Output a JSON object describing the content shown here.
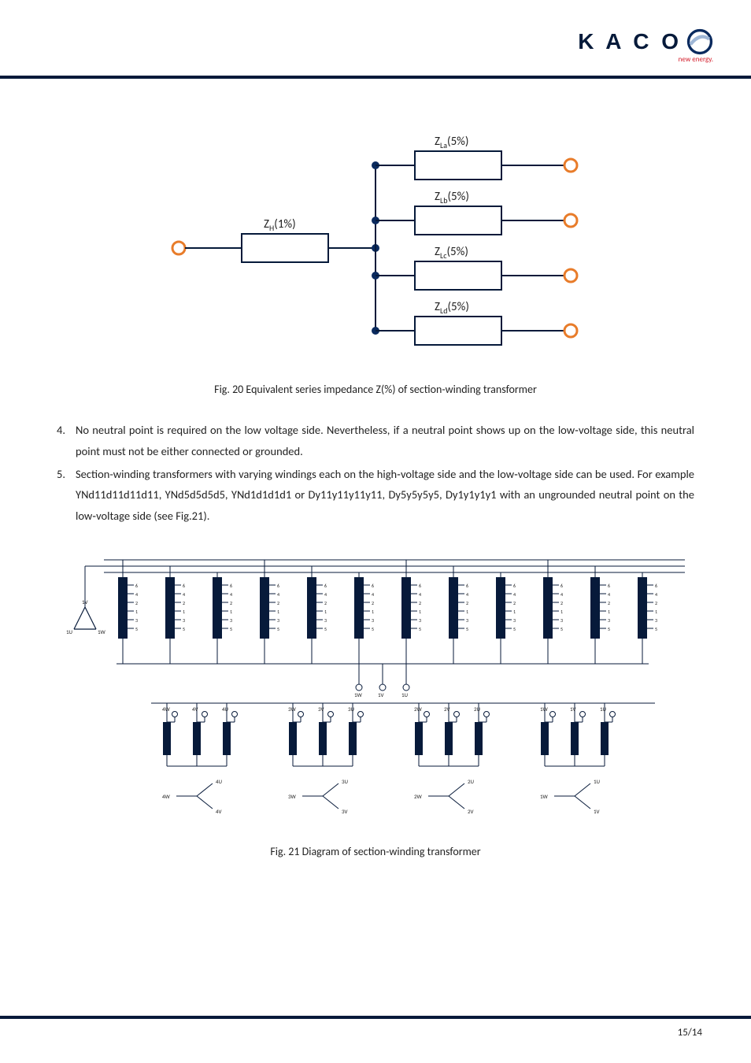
{
  "brand": {
    "name": "K A C O",
    "logo_text_color": "#061a3a",
    "swoosh_outer": "#0a2a5e",
    "swoosh_inner": "#9fb7d6",
    "tagline": "new energy.",
    "tagline_color": "#d31c2a"
  },
  "header_bar_color": "#071a3a",
  "footer_bar_color": "#071a3a",
  "page_number": "15/14",
  "fig20": {
    "caption": "Fig. 20 Equivalent series impedance Z(%) of section-winding transformer",
    "node_fill": "#0a2a5e",
    "terminal_stroke": "#e87c2a",
    "line_color": "#061a3a",
    "box_border": "#061a3a",
    "box_fill": "#ffffff",
    "left_label": "Z",
    "left_label_sub": "H",
    "left_label_val": "(1%)",
    "branches": [
      {
        "label": "Z",
        "sub": "La",
        "val": "(5%)"
      },
      {
        "label": "Z",
        "sub": "Lb",
        "val": "(5%)"
      },
      {
        "label": "Z",
        "sub": "Lc",
        "val": "(5%)"
      },
      {
        "label": "Z",
        "sub": "Ld",
        "val": "(5%)"
      }
    ]
  },
  "list": {
    "item4_num": "4.",
    "item4": "No neutral point is required on the low voltage side. Nevertheless, if a neutral point shows up on the low‑voltage side, this neutral point must not be either connected or grounded.",
    "item5_num": "5.",
    "item5": "Section-winding transformers with varying windings each on the high‑voltage side and the low‑voltage side can be used. For example YNd11d11d11d11, YNd5d5d5d5, YNd1d1d1d1 or Dy11y11y11y11, Dy5y5y5y5, Dy1y1y1y1 with an ungrounded neutral point on the low‑voltage side (see Fig.21)."
  },
  "fig21": {
    "caption": "Fig. 21 Diagram of section-winding transformer",
    "line_color": "#071a3a",
    "ticks": [
      "6",
      "4",
      "2",
      "1",
      "3",
      "5"
    ],
    "prim_labels": {
      "left": "1U",
      "top": "1V",
      "right": "1W"
    },
    "bus_labels": [
      "1W",
      "1V",
      "1U"
    ],
    "groups": [
      {
        "top": [
          "4W",
          "4V",
          "4U"
        ],
        "bot": {
          "l": "4W",
          "u": "4U",
          "v": "4V"
        }
      },
      {
        "top": [
          "3W",
          "3V",
          "3U"
        ],
        "bot": {
          "l": "3W",
          "u": "3U",
          "v": "3V"
        }
      },
      {
        "top": [
          "2W",
          "2V",
          "2U"
        ],
        "bot": {
          "l": "2W",
          "u": "2U",
          "v": "2V"
        }
      },
      {
        "top": [
          "1W",
          "1V",
          "1U"
        ],
        "bot": {
          "l": "1W",
          "u": "1U",
          "v": "1V"
        }
      }
    ]
  }
}
